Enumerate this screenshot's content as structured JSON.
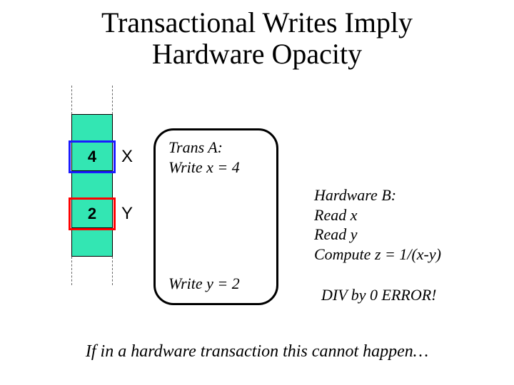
{
  "title_line1": "Transactional Writes Imply",
  "title_line2": "Hardware Opacity",
  "memory": {
    "row_fill": "#33e6b3",
    "cells_above": 1,
    "cells_below": 1,
    "x": {
      "value": "4",
      "label": "X",
      "highlight_color": "#1a1aff",
      "highlight_width": 3
    },
    "y": {
      "value": "2",
      "label": "Y",
      "highlight_color": "#ff0000",
      "highlight_width": 3
    }
  },
  "transA": {
    "header": "Trans A:",
    "line1": "Write x = 4",
    "line2": "Write y = 2"
  },
  "hardwareB": {
    "header": "Hardware B:",
    "line1": "Read x",
    "line2": "Read y",
    "line3": "Compute z = 1/(x-y)"
  },
  "error_text": "DIV by 0 ERROR!",
  "footer": "If in a hardware transaction this cannot happen…"
}
